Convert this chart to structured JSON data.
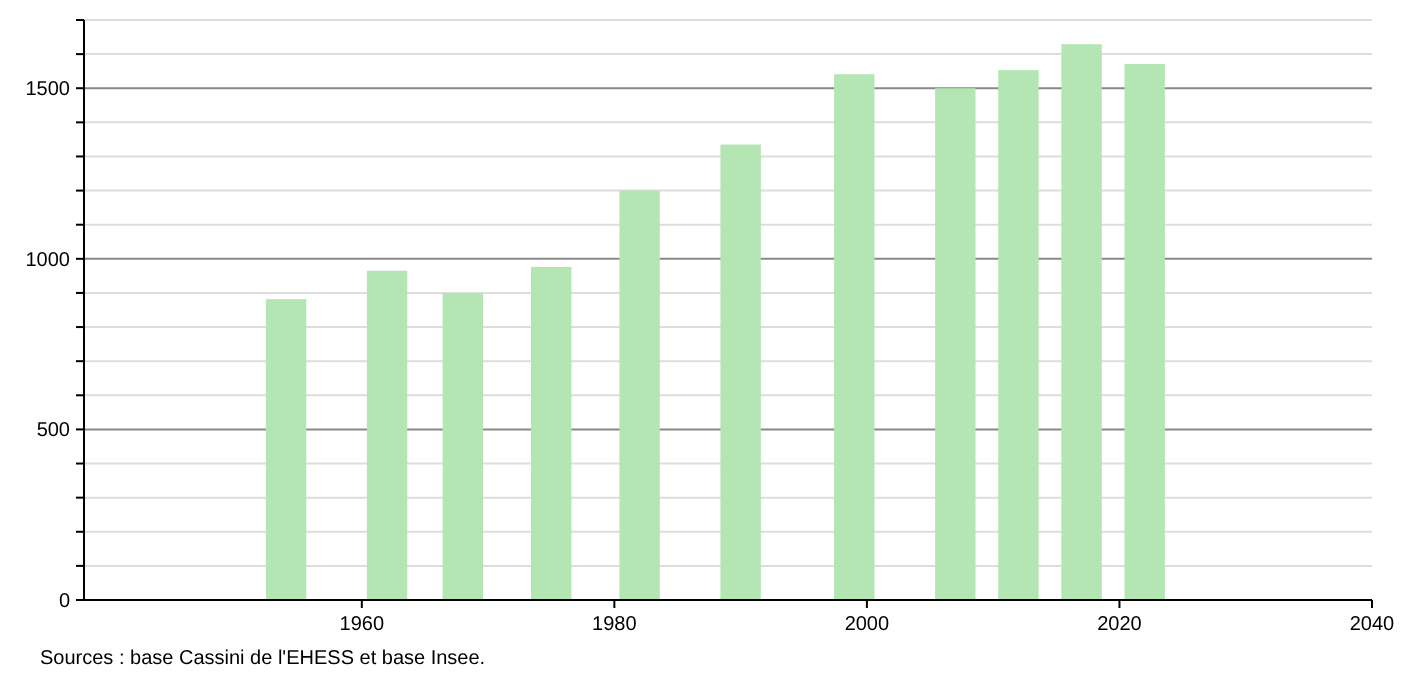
{
  "chart_data": {
    "type": "bar",
    "x": [
      1954,
      1962,
      1968,
      1975,
      1982,
      1990,
      1999,
      2007,
      2012,
      2017,
      2022
    ],
    "values": [
      882,
      965,
      900,
      976,
      1200,
      1335,
      1541,
      1500,
      1553,
      1629,
      1571
    ],
    "color": "#b3e6b3",
    "xlim": [
      1938,
      2040
    ],
    "xticks": [
      1960,
      1980,
      2000,
      2020,
      2040
    ],
    "ylim": [
      0,
      1700
    ],
    "yticks": [
      0,
      {
        "value": 100,
        "label": null
      },
      {
        "value": 200,
        "label": null
      },
      {
        "value": 300,
        "label": null
      },
      {
        "value": 400,
        "label": null
      },
      500,
      {
        "value": 600,
        "label": null
      },
      {
        "value": 700,
        "label": null
      },
      {
        "value": 800,
        "label": null
      },
      {
        "value": 900,
        "label": null
      },
      1000,
      {
        "value": 1100,
        "label": null
      },
      {
        "value": 1200,
        "label": null
      },
      {
        "value": 1300,
        "label": null
      },
      {
        "value": 1400,
        "label": null
      },
      1500,
      {
        "value": 1600,
        "label": null
      },
      {
        "value": 1700,
        "label": null
      }
    ],
    "grid": "y",
    "annotations": [
      "Sources : base Cassini de l'EHESS et base Insee."
    ]
  }
}
